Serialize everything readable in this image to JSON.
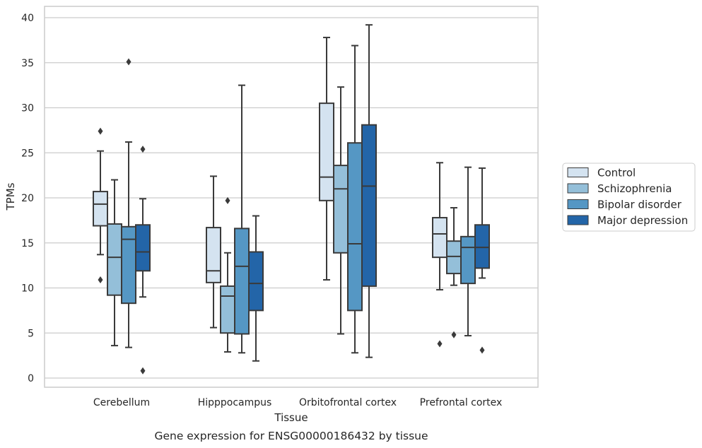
{
  "chart_data": {
    "type": "boxplot",
    "caption": "Gene expression for ENSG00000186432 by tissue",
    "xlabel": "Tissue",
    "ylabel": "TPMs",
    "ylim": [
      -1,
      41.2
    ],
    "yticks": [
      0,
      5,
      10,
      15,
      20,
      25,
      30,
      35,
      40
    ],
    "grid": "horizontal",
    "legend_position": "right",
    "categories": [
      "Cerebellum",
      "Hipppocampus",
      "Orbitofrontal cortex",
      "Prefrontal cortex"
    ],
    "series": [
      {
        "name": "Control",
        "color": "#d4e3f0",
        "boxes": [
          {
            "whislo": 13.7,
            "q1": 16.9,
            "med": 19.3,
            "q3": 20.7,
            "whishi": 25.2,
            "fliers": [
              27.4,
              10.9
            ]
          },
          {
            "whislo": 5.6,
            "q1": 10.6,
            "med": 11.9,
            "q3": 16.7,
            "whishi": 22.4,
            "fliers": []
          },
          {
            "whislo": 10.9,
            "q1": 19.7,
            "med": 22.3,
            "q3": 30.5,
            "whishi": 37.8,
            "fliers": []
          },
          {
            "whislo": 9.8,
            "q1": 13.4,
            "med": 16.0,
            "q3": 17.8,
            "whishi": 23.9,
            "fliers": [
              3.8
            ]
          }
        ]
      },
      {
        "name": "Schizophrenia",
        "color": "#94bfd9",
        "boxes": [
          {
            "whislo": 3.6,
            "q1": 9.2,
            "med": 13.4,
            "q3": 17.1,
            "whishi": 22.0,
            "fliers": []
          },
          {
            "whislo": 2.9,
            "q1": 5.0,
            "med": 9.1,
            "q3": 10.2,
            "whishi": 13.9,
            "fliers": [
              19.7
            ]
          },
          {
            "whislo": 4.9,
            "q1": 13.9,
            "med": 21.0,
            "q3": 23.6,
            "whishi": 32.3,
            "fliers": []
          },
          {
            "whislo": 10.3,
            "q1": 11.6,
            "med": 13.5,
            "q3": 15.2,
            "whishi": 18.9,
            "fliers": [
              4.8
            ]
          }
        ]
      },
      {
        "name": "Bipolar disorder",
        "color": "#5597c4",
        "boxes": [
          {
            "whislo": 3.4,
            "q1": 8.3,
            "med": 15.4,
            "q3": 16.8,
            "whishi": 26.2,
            "fliers": [
              35.1
            ]
          },
          {
            "whislo": 2.8,
            "q1": 4.9,
            "med": 12.4,
            "q3": 16.6,
            "whishi": 32.5,
            "fliers": []
          },
          {
            "whislo": 2.8,
            "q1": 7.5,
            "med": 14.9,
            "q3": 26.1,
            "whishi": 36.9,
            "fliers": []
          },
          {
            "whislo": 4.7,
            "q1": 10.5,
            "med": 14.5,
            "q3": 15.7,
            "whishi": 23.4,
            "fliers": []
          }
        ]
      },
      {
        "name": "Major depression",
        "color": "#2365a8",
        "boxes": [
          {
            "whislo": 9.0,
            "q1": 11.9,
            "med": 14.0,
            "q3": 17.0,
            "whishi": 19.9,
            "fliers": [
              25.4,
              0.8
            ]
          },
          {
            "whislo": 1.9,
            "q1": 7.5,
            "med": 10.5,
            "q3": 14.0,
            "whishi": 18.0,
            "fliers": []
          },
          {
            "whislo": 2.3,
            "q1": 10.2,
            "med": 21.3,
            "q3": 28.1,
            "whishi": 39.2,
            "fliers": []
          },
          {
            "whislo": 11.1,
            "q1": 12.2,
            "med": 14.5,
            "q3": 17.0,
            "whishi": 23.3,
            "fliers": [
              3.1
            ]
          }
        ]
      }
    ]
  }
}
